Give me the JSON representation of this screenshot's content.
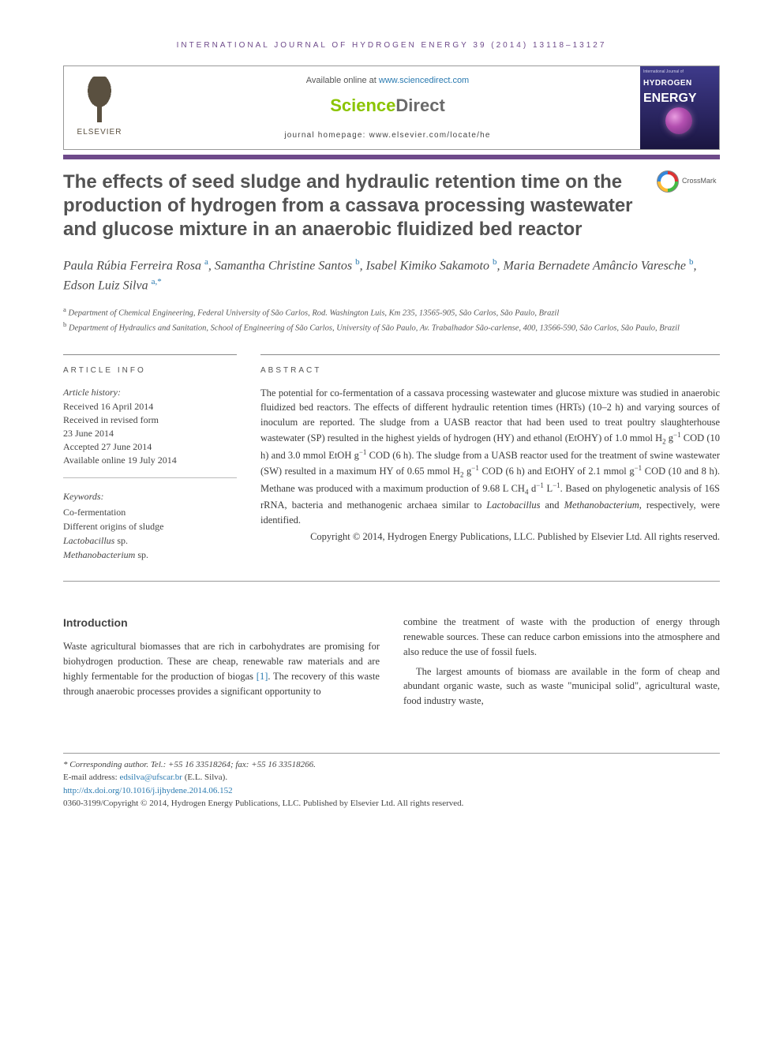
{
  "journal_header": "INTERNATIONAL JOURNAL OF HYDROGEN ENERGY 39 (2014) 13118–13127",
  "top": {
    "available_prefix": "Available online at ",
    "available_link": "www.sciencedirect.com",
    "sd_part1": "Science",
    "sd_part2": "Direct",
    "homepage_prefix": "journal homepage: ",
    "homepage_link": "www.elsevier.com/locate/he",
    "elsevier_label": "ELSEVIER",
    "cover_top": "International Journal of",
    "cover_line1": "HYDROGEN",
    "cover_line2": "ENERGY"
  },
  "crossmark_label": "CrossMark",
  "title": "The effects of seed sludge and hydraulic retention time on the production of hydrogen from a cassava processing wastewater and glucose mixture in an anaerobic fluidized bed reactor",
  "authors_html": "Paula Rúbia Ferreira Rosa <sup><a>a</a></sup>, Samantha Christine Santos <sup><a>b</a></sup>, Isabel Kimiko Sakamoto <sup><a>b</a></sup>, Maria Bernadete Amâncio Varesche <sup><a>b</a></sup>, Edson Luiz Silva <sup><a>a,</a>*</sup>",
  "affiliations": {
    "a": "Department of Chemical Engineering, Federal University of São Carlos, Rod. Washington Luis, Km 235, 13565-905, São Carlos, São Paulo, Brazil",
    "b": "Department of Hydraulics and Sanitation, School of Engineering of São Carlos, University of São Paulo, Av. Trabalhador São-carlense, 400, 13566-590, São Carlos, São Paulo, Brazil"
  },
  "info_label": "ARTICLE INFO",
  "abstract_label": "ABSTRACT",
  "history": {
    "head": "Article history:",
    "lines": [
      "Received 16 April 2014",
      "Received in revised form",
      "23 June 2014",
      "Accepted 27 June 2014",
      "Available online 19 July 2014"
    ]
  },
  "keywords": {
    "head": "Keywords:",
    "items": [
      "Co-fermentation",
      "Different origins of sludge",
      "Lactobacillus sp.",
      "Methanobacterium sp."
    ]
  },
  "abstract_html": "The potential for co-fermentation of a cassava processing wastewater and glucose mixture was studied in anaerobic fluidized bed reactors. The effects of different hydraulic retention times (HRTs) (10–2 h) and varying sources of inoculum are reported. The sludge from a UASB reactor that had been used to treat poultry slaughterhouse wastewater (SP) resulted in the highest yields of hydrogen (HY) and ethanol (EtOHY) of 1.0 mmol H<sub>2</sub> g<sup class=\"neg\">−1</sup> COD (10 h) and 3.0 mmol EtOH g<sup class=\"neg\">−1</sup> COD (6 h). The sludge from a UASB reactor used for the treatment of swine wastewater (SW) resulted in a maximum HY of 0.65 mmol H<sub>2</sub> g<sup class=\"neg\">−1</sup> COD (6 h) and EtOHY of 2.1 mmol g<sup class=\"neg\">−1</sup> COD (10 and 8 h). Methane was produced with a maximum production of 9.68 L CH<sub>4</sub> d<sup class=\"neg\">−1</sup> L<sup class=\"neg\">−1</sup>. Based on phylogenetic analysis of 16S rRNA, bacteria and methanogenic archaea similar to <i>Lactobacillus</i> and <i>Methanobacterium</i>, respectively, were identified.",
  "abstract_copyright": "Copyright © 2014, Hydrogen Energy Publications, LLC. Published by Elsevier Ltd. All rights reserved.",
  "intro_heading": "Introduction",
  "intro_p1_html": "Waste agricultural biomasses that are rich in carbohydrates are promising for biohydrogen production. These are cheap, renewable raw materials and are highly fermentable for the production of biogas <span class=\"ref-link\">[1]</span>. The recovery of this waste through anaerobic processes provides a significant opportunity to",
  "intro_p2": "combine the treatment of waste with the production of energy through renewable sources. These can reduce carbon emissions into the atmosphere and also reduce the use of fossil fuels.",
  "intro_p3": "The largest amounts of biomass are available in the form of cheap and abundant organic waste, such as waste \"municipal solid\", agricultural waste, food industry waste,",
  "footer": {
    "corr_line": "* Corresponding author. Tel.: +55 16 33518264; fax: +55 16 33518266.",
    "email_label": "E-mail address: ",
    "email": "edsilva@ufscar.br",
    "email_suffix": " (E.L. Silva).",
    "doi": "http://dx.doi.org/10.1016/j.ijhydene.2014.06.152",
    "issn_line": "0360-3199/Copyright © 2014, Hydrogen Energy Publications, LLC. Published by Elsevier Ltd. All rights reserved."
  },
  "colors": {
    "purple": "#6e4a8a",
    "link": "#2a7ab0",
    "sd_green": "#8bc400",
    "sd_gray": "#6a6a6a"
  }
}
